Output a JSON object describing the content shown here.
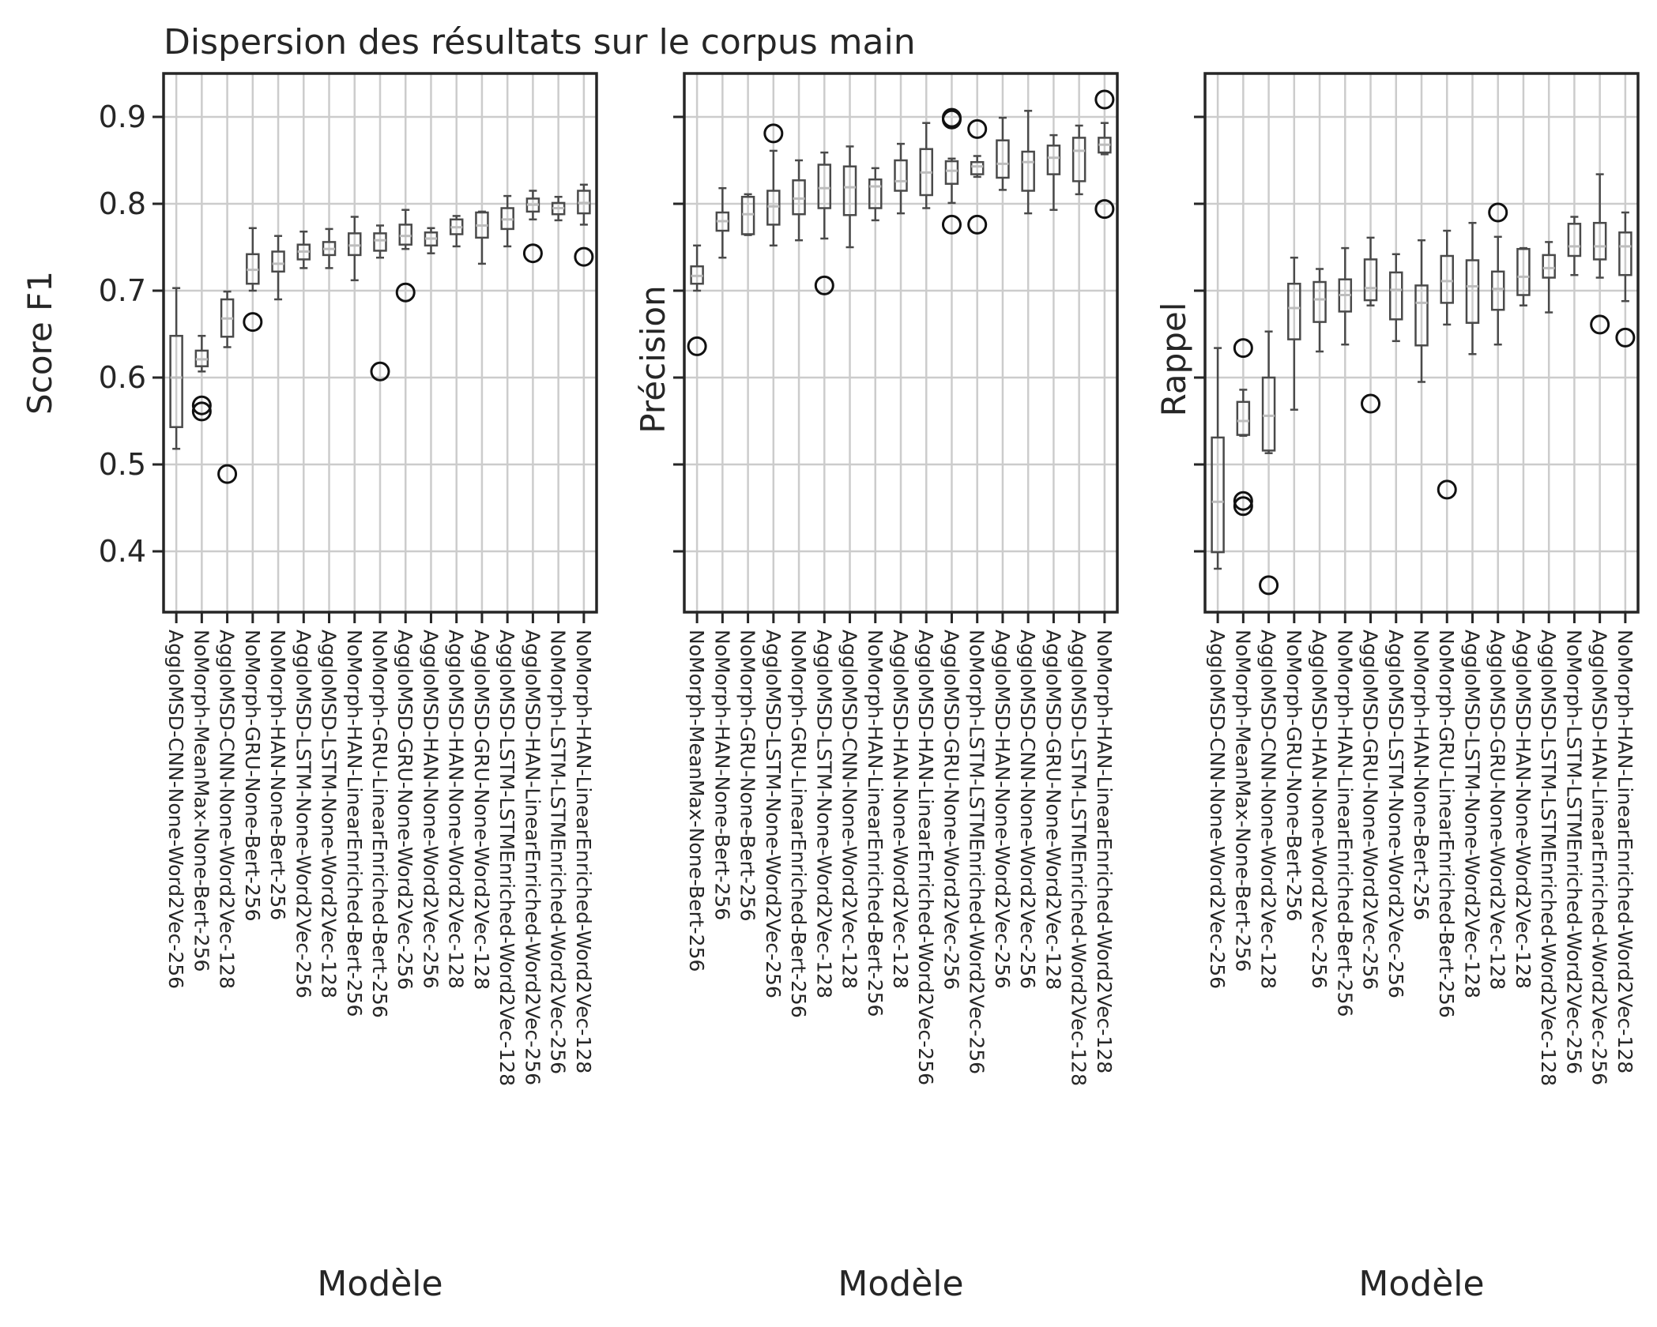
{
  "title": "Dispersion des résultats sur le corpus main",
  "xlabel": "Modèle",
  "ylim": [
    0.33,
    0.95
  ],
  "yticks": [
    "0.4",
    "0.5",
    "0.6",
    "0.7",
    "0.8",
    "0.9"
  ],
  "colors": {
    "box": "#4a4a4a",
    "median": "#bdbdbd",
    "grid": "#cccccc",
    "spine": "#262626"
  },
  "chart_data": [
    {
      "type": "box",
      "ylabel": "Score F1",
      "categories": [
        "AggloMSD-CNN-None-Word2Vec-256",
        "NoMorph-MeanMax-None-Bert-256",
        "AggloMSD-CNN-None-Word2Vec-128",
        "NoMorph-GRU-None-Bert-256",
        "NoMorph-HAN-None-Bert-256",
        "AggloMSD-LSTM-None-Word2Vec-256",
        "AggloMSD-LSTM-None-Word2Vec-128",
        "NoMorph-HAN-LinearEnriched-Bert-256",
        "NoMorph-GRU-LinearEnriched-Bert-256",
        "AggloMSD-GRU-None-Word2Vec-256",
        "AggloMSD-HAN-None-Word2Vec-256",
        "AggloMSD-HAN-None-Word2Vec-128",
        "AggloMSD-GRU-None-Word2Vec-128",
        "AggloMSD-LSTM-LSTMEnriched-Word2Vec-128",
        "AggloMSD-HAN-LinearEnriched-Word2Vec-256",
        "NoMorph-LSTM-LSTMEnriched-Word2Vec-256",
        "NoMorph-HAN-LinearEnriched-Word2Vec-128"
      ],
      "boxes": [
        {
          "whislo": 0.518,
          "q1": 0.543,
          "med": 0.6,
          "q3": 0.648,
          "whishi": 0.703,
          "fliers": []
        },
        {
          "whislo": 0.607,
          "q1": 0.613,
          "med": 0.621,
          "q3": 0.631,
          "whishi": 0.648,
          "fliers": [
            0.568,
            0.561
          ]
        },
        {
          "whislo": 0.635,
          "q1": 0.647,
          "med": 0.668,
          "q3": 0.69,
          "whishi": 0.699,
          "fliers": [
            0.489
          ]
        },
        {
          "whislo": 0.7,
          "q1": 0.708,
          "med": 0.724,
          "q3": 0.742,
          "whishi": 0.772,
          "fliers": [
            0.664
          ]
        },
        {
          "whislo": 0.69,
          "q1": 0.722,
          "med": 0.731,
          "q3": 0.745,
          "whishi": 0.763,
          "fliers": []
        },
        {
          "whislo": 0.726,
          "q1": 0.736,
          "med": 0.745,
          "q3": 0.753,
          "whishi": 0.768,
          "fliers": []
        },
        {
          "whislo": 0.726,
          "q1": 0.741,
          "med": 0.748,
          "q3": 0.756,
          "whishi": 0.771,
          "fliers": []
        },
        {
          "whislo": 0.712,
          "q1": 0.741,
          "med": 0.752,
          "q3": 0.766,
          "whishi": 0.785,
          "fliers": []
        },
        {
          "whislo": 0.738,
          "q1": 0.746,
          "med": 0.758,
          "q3": 0.766,
          "whishi": 0.775,
          "fliers": [
            0.607
          ]
        },
        {
          "whislo": 0.748,
          "q1": 0.753,
          "med": 0.763,
          "q3": 0.776,
          "whishi": 0.793,
          "fliers": [
            0.698
          ]
        },
        {
          "whislo": 0.743,
          "q1": 0.752,
          "med": 0.76,
          "q3": 0.767,
          "whishi": 0.772,
          "fliers": []
        },
        {
          "whislo": 0.751,
          "q1": 0.765,
          "med": 0.773,
          "q3": 0.782,
          "whishi": 0.786,
          "fliers": []
        },
        {
          "whislo": 0.731,
          "q1": 0.761,
          "med": 0.775,
          "q3": 0.79,
          "whishi": 0.791,
          "fliers": []
        },
        {
          "whislo": 0.751,
          "q1": 0.771,
          "med": 0.782,
          "q3": 0.795,
          "whishi": 0.809,
          "fliers": []
        },
        {
          "whislo": 0.782,
          "q1": 0.791,
          "med": 0.799,
          "q3": 0.806,
          "whishi": 0.815,
          "fliers": [
            0.743
          ]
        },
        {
          "whislo": 0.781,
          "q1": 0.788,
          "med": 0.795,
          "q3": 0.801,
          "whishi": 0.808,
          "fliers": []
        },
        {
          "whislo": 0.776,
          "q1": 0.789,
          "med": 0.801,
          "q3": 0.815,
          "whishi": 0.822,
          "fliers": [
            0.739
          ]
        }
      ]
    },
    {
      "type": "box",
      "ylabel": "Précision",
      "categories": [
        "NoMorph-MeanMax-None-Bert-256",
        "NoMorph-HAN-None-Bert-256",
        "NoMorph-GRU-None-Bert-256",
        "AggloMSD-LSTM-None-Word2Vec-256",
        "NoMorph-GRU-LinearEnriched-Bert-256",
        "AggloMSD-LSTM-None-Word2Vec-128",
        "AggloMSD-CNN-None-Word2Vec-128",
        "NoMorph-HAN-LinearEnriched-Bert-256",
        "AggloMSD-HAN-None-Word2Vec-128",
        "AggloMSD-HAN-LinearEnriched-Word2Vec-256",
        "AggloMSD-GRU-None-Word2Vec-256",
        "NoMorph-LSTM-LSTMEnriched-Word2Vec-256",
        "AggloMSD-HAN-None-Word2Vec-256",
        "AggloMSD-CNN-None-Word2Vec-256",
        "AggloMSD-GRU-None-Word2Vec-128",
        "AggloMSD-LSTM-LSTMEnriched-Word2Vec-128",
        "NoMorph-HAN-LinearEnriched-Word2Vec-128"
      ],
      "boxes": [
        {
          "whislo": 0.7,
          "q1": 0.708,
          "med": 0.717,
          "q3": 0.728,
          "whishi": 0.752,
          "fliers": [
            0.636
          ]
        },
        {
          "whislo": 0.738,
          "q1": 0.769,
          "med": 0.78,
          "q3": 0.79,
          "whishi": 0.818,
          "fliers": []
        },
        {
          "whislo": 0.764,
          "q1": 0.765,
          "med": 0.788,
          "q3": 0.808,
          "whishi": 0.811,
          "fliers": []
        },
        {
          "whislo": 0.752,
          "q1": 0.776,
          "med": 0.797,
          "q3": 0.815,
          "whishi": 0.861,
          "fliers": [
            0.881
          ]
        },
        {
          "whislo": 0.758,
          "q1": 0.788,
          "med": 0.806,
          "q3": 0.827,
          "whishi": 0.85,
          "fliers": []
        },
        {
          "whislo": 0.76,
          "q1": 0.795,
          "med": 0.818,
          "q3": 0.845,
          "whishi": 0.859,
          "fliers": [
            0.706
          ]
        },
        {
          "whislo": 0.75,
          "q1": 0.787,
          "med": 0.819,
          "q3": 0.843,
          "whishi": 0.866,
          "fliers": []
        },
        {
          "whislo": 0.781,
          "q1": 0.795,
          "med": 0.82,
          "q3": 0.828,
          "whishi": 0.841,
          "fliers": []
        },
        {
          "whislo": 0.789,
          "q1": 0.815,
          "med": 0.826,
          "q3": 0.85,
          "whishi": 0.869,
          "fliers": []
        },
        {
          "whislo": 0.795,
          "q1": 0.81,
          "med": 0.836,
          "q3": 0.863,
          "whishi": 0.893,
          "fliers": []
        },
        {
          "whislo": 0.801,
          "q1": 0.823,
          "med": 0.838,
          "q3": 0.849,
          "whishi": 0.852,
          "fliers": [
            0.899,
            0.897,
            0.776
          ]
        },
        {
          "whislo": 0.831,
          "q1": 0.834,
          "med": 0.843,
          "q3": 0.848,
          "whishi": 0.855,
          "fliers": [
            0.886,
            0.776
          ]
        },
        {
          "whislo": 0.816,
          "q1": 0.83,
          "med": 0.846,
          "q3": 0.873,
          "whishi": 0.899,
          "fliers": []
        },
        {
          "whislo": 0.789,
          "q1": 0.815,
          "med": 0.848,
          "q3": 0.86,
          "whishi": 0.907,
          "fliers": []
        },
        {
          "whislo": 0.793,
          "q1": 0.834,
          "med": 0.853,
          "q3": 0.867,
          "whishi": 0.879,
          "fliers": []
        },
        {
          "whislo": 0.811,
          "q1": 0.826,
          "med": 0.861,
          "q3": 0.876,
          "whishi": 0.89,
          "fliers": []
        },
        {
          "whislo": 0.857,
          "q1": 0.859,
          "med": 0.868,
          "q3": 0.876,
          "whishi": 0.893,
          "fliers": [
            0.92,
            0.794
          ]
        }
      ]
    },
    {
      "type": "box",
      "ylabel": "Rappel",
      "categories": [
        "AggloMSD-CNN-None-Word2Vec-256",
        "NoMorph-MeanMax-None-Bert-256",
        "AggloMSD-CNN-None-Word2Vec-128",
        "NoMorph-GRU-None-Bert-256",
        "AggloMSD-HAN-None-Word2Vec-256",
        "NoMorph-HAN-LinearEnriched-Bert-256",
        "AggloMSD-GRU-None-Word2Vec-256",
        "AggloMSD-LSTM-None-Word2Vec-256",
        "NoMorph-HAN-None-Bert-256",
        "NoMorph-GRU-LinearEnriched-Bert-256",
        "AggloMSD-LSTM-None-Word2Vec-128",
        "AggloMSD-GRU-None-Word2Vec-128",
        "AggloMSD-HAN-None-Word2Vec-128",
        "AggloMSD-LSTM-LSTMEnriched-Word2Vec-128",
        "NoMorph-LSTM-LSTMEnriched-Word2Vec-256",
        "AggloMSD-HAN-LinearEnriched-Word2Vec-256",
        "NoMorph-HAN-LinearEnriched-Word2Vec-128"
      ],
      "boxes": [
        {
          "whislo": 0.38,
          "q1": 0.399,
          "med": 0.457,
          "q3": 0.531,
          "whishi": 0.634,
          "fliers": []
        },
        {
          "whislo": 0.533,
          "q1": 0.534,
          "med": 0.55,
          "q3": 0.572,
          "whishi": 0.586,
          "fliers": [
            0.634,
            0.458,
            0.452
          ]
        },
        {
          "whislo": 0.513,
          "q1": 0.516,
          "med": 0.556,
          "q3": 0.6,
          "whishi": 0.653,
          "fliers": [
            0.361
          ]
        },
        {
          "whislo": 0.563,
          "q1": 0.644,
          "med": 0.68,
          "q3": 0.708,
          "whishi": 0.738,
          "fliers": []
        },
        {
          "whislo": 0.63,
          "q1": 0.664,
          "med": 0.69,
          "q3": 0.71,
          "whishi": 0.725,
          "fliers": []
        },
        {
          "whislo": 0.638,
          "q1": 0.676,
          "med": 0.695,
          "q3": 0.713,
          "whishi": 0.749,
          "fliers": []
        },
        {
          "whislo": 0.683,
          "q1": 0.689,
          "med": 0.703,
          "q3": 0.736,
          "whishi": 0.761,
          "fliers": [
            0.57
          ]
        },
        {
          "whislo": 0.642,
          "q1": 0.667,
          "med": 0.701,
          "q3": 0.721,
          "whishi": 0.742,
          "fliers": []
        },
        {
          "whislo": 0.595,
          "q1": 0.637,
          "med": 0.686,
          "q3": 0.706,
          "whishi": 0.758,
          "fliers": []
        },
        {
          "whislo": 0.661,
          "q1": 0.686,
          "med": 0.711,
          "q3": 0.74,
          "whishi": 0.769,
          "fliers": [
            0.471
          ]
        },
        {
          "whislo": 0.627,
          "q1": 0.663,
          "med": 0.705,
          "q3": 0.735,
          "whishi": 0.778,
          "fliers": []
        },
        {
          "whislo": 0.638,
          "q1": 0.678,
          "med": 0.702,
          "q3": 0.722,
          "whishi": 0.762,
          "fliers": [
            0.79
          ]
        },
        {
          "whislo": 0.683,
          "q1": 0.695,
          "med": 0.716,
          "q3": 0.748,
          "whishi": 0.749,
          "fliers": []
        },
        {
          "whislo": 0.675,
          "q1": 0.715,
          "med": 0.726,
          "q3": 0.741,
          "whishi": 0.756,
          "fliers": []
        },
        {
          "whislo": 0.718,
          "q1": 0.74,
          "med": 0.751,
          "q3": 0.777,
          "whishi": 0.785,
          "fliers": []
        },
        {
          "whislo": 0.715,
          "q1": 0.736,
          "med": 0.751,
          "q3": 0.778,
          "whishi": 0.834,
          "fliers": [
            0.661
          ]
        },
        {
          "whislo": 0.688,
          "q1": 0.718,
          "med": 0.751,
          "q3": 0.767,
          "whishi": 0.79,
          "fliers": [
            0.646
          ]
        }
      ]
    }
  ]
}
